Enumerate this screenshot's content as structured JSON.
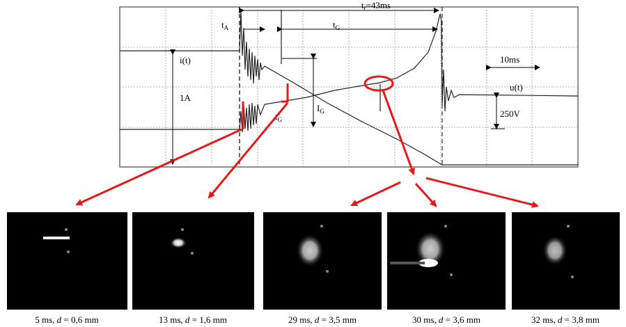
{
  "oscillogram": {
    "t_total": {
      "base": "t",
      "sub": "r",
      "rest": "=43ms"
    },
    "t_A": {
      "base": "t",
      "sub": "A"
    },
    "t_G": {
      "base": "t",
      "sub": "G"
    },
    "i_label": "i(t)",
    "u_label": "u(t)",
    "current_scale": "1A",
    "voltage_scale": "250V",
    "time_scale": "10ms",
    "I_G": {
      "base": "I",
      "sub": "G"
    },
    "t_G_small": {
      "base": "t",
      "sub": "G"
    }
  },
  "frames": [
    {
      "time": "5 ms,",
      "var": "d",
      "value": "= 0,6 mm"
    },
    {
      "time": "13 ms,",
      "var": "d",
      "value": "= 1,6 mm"
    },
    {
      "time": "29 ms,",
      "var": "d",
      "value": "= 3,5 mm"
    },
    {
      "time": "30 ms,",
      "var": "d",
      "value": "= 3,6 mm"
    },
    {
      "time": "32 ms,",
      "var": "d",
      "value": "= 3,8 mm"
    }
  ]
}
